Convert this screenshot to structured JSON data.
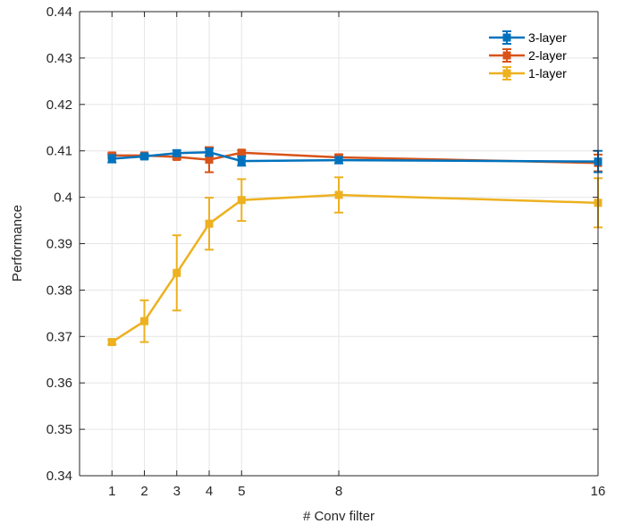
{
  "chart_data": {
    "type": "line",
    "title": "",
    "xlabel": "# Conv filter",
    "ylabel": "Performance",
    "x": [
      1,
      2,
      3,
      4,
      5,
      8,
      16
    ],
    "xticks": [
      "1",
      "2",
      "3",
      "4",
      "5",
      "8",
      "16"
    ],
    "xlim": [
      0,
      16
    ],
    "ylim": [
      0.34,
      0.44
    ],
    "yticks": [
      "0.34",
      "0.35",
      "0.36",
      "0.37",
      "0.38",
      "0.39",
      "0.4",
      "0.41",
      "0.42",
      "0.43",
      "0.44"
    ],
    "grid": true,
    "legend_position": "top-right",
    "series": [
      {
        "name": "3-layer",
        "color": "#0072BD",
        "values": [
          0.4083,
          0.4088,
          0.4095,
          0.4097,
          0.4078,
          0.408,
          0.4077
        ],
        "errors": [
          0.0008,
          0.0005,
          0.0006,
          0.0008,
          0.001,
          0.0007,
          0.0023
        ]
      },
      {
        "name": "2-layer",
        "color": "#D95319",
        "values": [
          0.409,
          0.409,
          0.4087,
          0.4081,
          0.4096,
          0.4086,
          0.4074
        ],
        "errors": [
          0.0005,
          0.0003,
          0.0005,
          0.0027,
          0.0005,
          0.0006,
          0.0018
        ]
      },
      {
        "name": "1-layer",
        "color": "#EDB120",
        "values": [
          0.3688,
          0.3733,
          0.3837,
          0.3943,
          0.3994,
          0.4005,
          0.3988
        ],
        "errors": [
          0.0005,
          0.0045,
          0.0081,
          0.0056,
          0.0045,
          0.0038,
          0.0053
        ]
      }
    ]
  }
}
